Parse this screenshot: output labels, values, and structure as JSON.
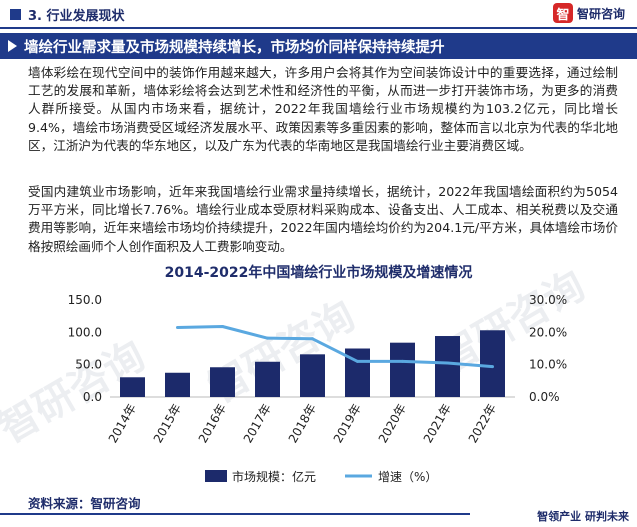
{
  "header": {
    "section_label": "3. 行业发展现状",
    "brand_name": "智研咨询",
    "brand_mark": "智"
  },
  "banner": {
    "title": "墙绘行业需求量及市场规模持续增长，市场均价同样保持持续提升"
  },
  "body": {
    "paragraph_1": "墙体彩绘在现代空间中的装饰作用越来越大，许多用户会将其作为空间装饰设计中的重要选择，通过绘制工艺的发展和革新，墙体彩绘将会达到艺术性和经济性的平衡，从而进一步打开装饰市场，为更多的消费人群所接受。从国内市场来看，据统计，2022年我国墙绘行业市场规模约为103.2亿元，同比增长9.4%，墙绘市场消费受区域经济发展水平、政策因素等多重因素的影响，整体而言以北京为代表的华北地区，江浙沪为代表的华东地区，以及广东为代表的华南地区是我国墙绘行业主要消费区域。",
    "paragraph_2": "受国内建筑业市场影响，近年来我国墙绘行业需求量持续增长，据统计，2022年我国墙绘面积约为5054万平方米，同比增长7.76%。墙绘行业成本受原材料采购成本、设备支出、人工成本、相关税费以及交通费用等影响，近年来墙绘市场均价持续提升，2022年国内墙绘均价约为204.1元/平方米，具体墙绘市场价格按照绘画师个人创作面积及人工费影响变动。"
  },
  "chart_data": {
    "type": "bar",
    "title": "2014-2022年中国墙绘行业市场规模及增速情况",
    "categories": [
      "2014年",
      "2015年",
      "2016年",
      "2017年",
      "2018年",
      "2019年",
      "2020年",
      "2021年",
      "2022年"
    ],
    "series": [
      {
        "name": "市场规模：亿元",
        "type": "bar",
        "axis": "left",
        "color": "#1c2a6b",
        "values": [
          30.5,
          37.5,
          46.0,
          54.5,
          66.0,
          75.0,
          84.0,
          94.3,
          103.2
        ]
      },
      {
        "name": "增速（%）",
        "type": "line",
        "axis": "right",
        "color": "#5aa8e0",
        "values": [
          null,
          21.5,
          21.8,
          18.2,
          18.0,
          11.0,
          11.0,
          10.5,
          9.4
        ]
      }
    ],
    "left_ticks": [
      "0.0",
      "50.0",
      "100.0",
      "150.0"
    ],
    "right_ticks": [
      "0.0%",
      "10.0%",
      "20.0%",
      "30.0%"
    ],
    "ylim_left": [
      0,
      150
    ],
    "ylim_right": [
      0,
      30
    ],
    "legend_position": "bottom"
  },
  "footer": {
    "source": "资料来源：智研咨询",
    "slogan": "智领产业  研判未来"
  },
  "watermark": {
    "text": "智研咨询",
    "subtext": "www.chyxx.com"
  }
}
